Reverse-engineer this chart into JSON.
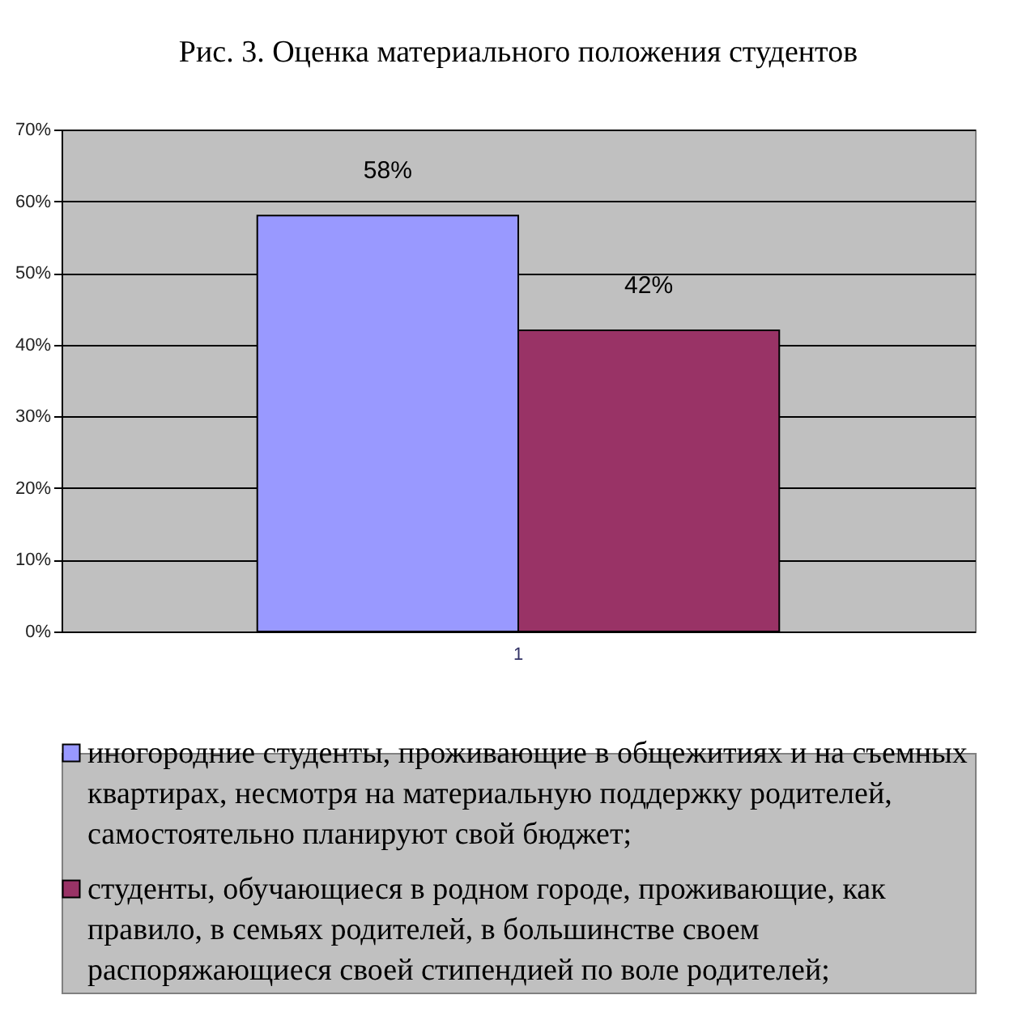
{
  "chart_data": {
    "type": "bar",
    "title": "Рис. 3. Оценка материального положения студентов",
    "categories": [
      "1"
    ],
    "series": [
      {
        "name": "иногородние студенты, проживающие в общежитиях и на съемных квартирах, несмотря на материальную поддержку родителей, самостоятельно планируют свой бюджет;",
        "color": "#9999ff",
        "values": [
          58
        ],
        "value_labels": [
          "58%"
        ]
      },
      {
        "name": "студенты, обучающиеся в родном городе, проживающие, как правило, в семьях родителей, в большинстве своем распоряжающиеся своей стипендией по воле родителей;",
        "color": "#993366",
        "values": [
          42
        ],
        "value_labels": [
          "42%"
        ]
      }
    ],
    "ylim": [
      0,
      70
    ],
    "yticks": [
      {
        "value": 0,
        "label": "0%"
      },
      {
        "value": 10,
        "label": "10%"
      },
      {
        "value": 20,
        "label": "20%"
      },
      {
        "value": 30,
        "label": "30%"
      },
      {
        "value": 40,
        "label": "40%"
      },
      {
        "value": 50,
        "label": "50%"
      },
      {
        "value": 60,
        "label": "60%"
      },
      {
        "value": 70,
        "label": "70%"
      }
    ],
    "grid": "y",
    "legend": "bottom"
  }
}
